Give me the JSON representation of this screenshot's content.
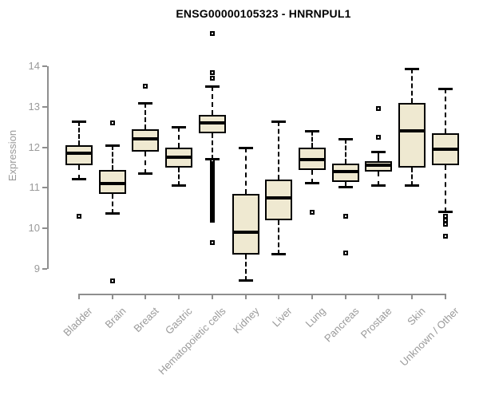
{
  "chart_data": {
    "type": "boxplot",
    "title": "ENSG00000105323 - HNRNPUL1",
    "ylabel": "Expression",
    "xlabel": "",
    "ylim": [
      8.6,
      14.9
    ],
    "yticks": [
      9,
      10,
      11,
      12,
      13,
      14
    ],
    "grid": false,
    "legend": "none",
    "categories": [
      "Bladder",
      "Brain",
      "Breast",
      "Gastric",
      "Hematopoietic cells",
      "Kidney",
      "Liver",
      "Lung",
      "Pancreas",
      "Prostate",
      "Skin",
      "Unknown / Other"
    ],
    "boxes": [
      {
        "category": "Bladder",
        "whisker_low": 11.2,
        "q1": 11.55,
        "median": 11.85,
        "q3": 12.05,
        "whisker_high": 12.65,
        "outliers": [
          10.3
        ]
      },
      {
        "category": "Brain",
        "whisker_low": 10.35,
        "q1": 10.85,
        "median": 11.1,
        "q3": 11.45,
        "whisker_high": 12.05,
        "outliers": [
          12.6,
          8.7
        ]
      },
      {
        "category": "Breast",
        "whisker_low": 11.35,
        "q1": 11.9,
        "median": 12.2,
        "q3": 12.45,
        "whisker_high": 13.1,
        "outliers": [
          13.5
        ]
      },
      {
        "category": "Gastric",
        "whisker_low": 11.05,
        "q1": 11.5,
        "median": 11.75,
        "q3": 12.0,
        "whisker_high": 12.5,
        "outliers": []
      },
      {
        "category": "Hematopoietic cells",
        "whisker_low": 11.7,
        "q1": 12.35,
        "median": 12.6,
        "q3": 12.8,
        "whisker_high": 13.5,
        "outliers": [
          14.8,
          13.85,
          13.7,
          11.65,
          11.6,
          11.55,
          11.5,
          11.45,
          11.4,
          11.35,
          11.3,
          11.25,
          11.2,
          11.15,
          11.1,
          11.05,
          11.0,
          10.95,
          10.9,
          10.85,
          10.8,
          10.75,
          10.7,
          10.65,
          10.6,
          10.55,
          10.5,
          10.45,
          10.4,
          10.35,
          10.3,
          10.25,
          10.2,
          9.65
        ]
      },
      {
        "category": "Kidney",
        "whisker_low": 8.7,
        "q1": 9.35,
        "median": 9.9,
        "q3": 10.85,
        "whisker_high": 12.0,
        "outliers": []
      },
      {
        "category": "Liver",
        "whisker_low": 9.35,
        "q1": 10.2,
        "median": 10.75,
        "q3": 11.2,
        "whisker_high": 12.65,
        "outliers": []
      },
      {
        "category": "Lung",
        "whisker_low": 11.1,
        "q1": 11.45,
        "median": 11.7,
        "q3": 12.0,
        "whisker_high": 12.4,
        "outliers": [
          10.4
        ]
      },
      {
        "category": "Pancreas",
        "whisker_low": 11.0,
        "q1": 11.15,
        "median": 11.4,
        "q3": 11.6,
        "whisker_high": 12.2,
        "outliers": [
          10.3,
          9.4
        ]
      },
      {
        "category": "Prostate",
        "whisker_low": 11.05,
        "q1": 11.4,
        "median": 11.55,
        "q3": 11.65,
        "whisker_high": 11.9,
        "outliers": [
          12.95,
          12.25
        ]
      },
      {
        "category": "Skin",
        "whisker_low": 11.05,
        "q1": 11.5,
        "median": 12.4,
        "q3": 13.1,
        "whisker_high": 13.95,
        "outliers": []
      },
      {
        "category": "Unknown / Other",
        "whisker_low": 10.4,
        "q1": 11.55,
        "median": 11.95,
        "q3": 12.35,
        "whisker_high": 13.45,
        "outliers": [
          10.3,
          10.2,
          10.1,
          9.8
        ]
      }
    ],
    "colors": {
      "box_fill": "#EFE9D1",
      "box_border": "#000000",
      "median": "#000000",
      "whisker": "#000000",
      "outlier": "#000000",
      "axis": "#8E8E8E",
      "tick_text": "#9A9A9A",
      "title_text": "#000000",
      "background": "#FFFFFF"
    }
  }
}
